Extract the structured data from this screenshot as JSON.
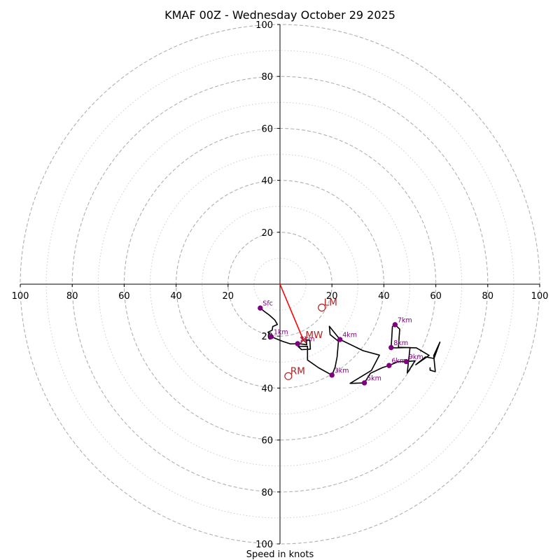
{
  "chart_data": {
    "type": "hodograph",
    "title": "KMAF 00Z - Wednesday October 29 2025",
    "xlabel": "Speed in knots",
    "units": "knots",
    "rings_major": [
      20,
      40,
      60,
      80,
      100
    ],
    "rings_minor": [
      10,
      30,
      50,
      70,
      90
    ],
    "axis_tick_labels": [
      "20",
      "40",
      "60",
      "80",
      "100"
    ],
    "xlim": [
      -100,
      100
    ],
    "ylim": [
      -100,
      100
    ],
    "colors": {
      "trace": "#000000",
      "height_markers": "#800080",
      "motion": "#b22222",
      "shear_vector": "#ff0000",
      "major_ring": "#b0b0b0",
      "minor_ring": "#cccccc"
    },
    "trace": [
      [
        -7.6,
        -9.2
      ],
      [
        -6,
        -10.5
      ],
      [
        -4,
        -12
      ],
      [
        -2,
        -13.8
      ],
      [
        -1,
        -15.5
      ],
      [
        -2.8,
        -16.3
      ],
      [
        -3,
        -17.7
      ],
      [
        -4.6,
        -18.5
      ],
      [
        -3.8,
        -19.5
      ],
      [
        -3.4,
        -20.2
      ],
      [
        -1.5,
        -21
      ],
      [
        1,
        -22
      ],
      [
        4,
        -23
      ],
      [
        6.8,
        -22.9
      ],
      [
        8,
        -23
      ],
      [
        10.3,
        -23.3
      ],
      [
        10.1,
        -21.4
      ],
      [
        11.5,
        -21.6
      ],
      [
        11.7,
        -25
      ],
      [
        8.3,
        -25.2
      ],
      [
        7,
        -24
      ],
      [
        10.6,
        -23.9
      ],
      [
        10.6,
        -29.2
      ],
      [
        14.9,
        -32.2
      ],
      [
        20,
        -35
      ],
      [
        21.2,
        -32
      ],
      [
        22,
        -28
      ],
      [
        22.5,
        -22
      ],
      [
        19.3,
        -19.4
      ],
      [
        19,
        -16.2
      ],
      [
        23.1,
        -21.3
      ],
      [
        32,
        -25.6
      ],
      [
        38.3,
        -27.3
      ],
      [
        35.2,
        -33.2
      ],
      [
        27,
        -38.2
      ],
      [
        32.5,
        -38
      ],
      [
        34.8,
        -34.3
      ],
      [
        39.5,
        -32.1
      ],
      [
        42,
        -31.3
      ],
      [
        45.5,
        -29.8
      ],
      [
        48.6,
        -29.8
      ],
      [
        52,
        -29.5
      ],
      [
        49,
        -34.2
      ],
      [
        50,
        -25
      ],
      [
        50,
        -24.4
      ],
      [
        44.2,
        -24.5
      ],
      [
        42.8,
        -24.4
      ],
      [
        43.3,
        -16.3
      ],
      [
        44.3,
        -15.6
      ],
      [
        46.1,
        -17.3
      ],
      [
        45.6,
        -24.3
      ],
      [
        52.5,
        -24.5
      ],
      [
        57.4,
        -27.4
      ],
      [
        52.3,
        -31
      ],
      [
        56,
        -28
      ],
      [
        59.3,
        -28.6
      ],
      [
        61.6,
        -22.3
      ],
      [
        59.2,
        -27.5
      ],
      [
        59.8,
        -33.7
      ],
      [
        57.8,
        -33.1
      ],
      [
        57.8,
        -32
      ]
    ],
    "height_markers": [
      {
        "label": "Sfc",
        "u": -7.6,
        "v": -9.2
      },
      {
        "label": "1km",
        "u": -3.4,
        "v": -20.2
      },
      {
        "label": "2km",
        "u": 6.8,
        "v": -22.9
      },
      {
        "label": "3km",
        "u": 20,
        "v": -35
      },
      {
        "label": "4km",
        "u": 23.1,
        "v": -21.3
      },
      {
        "label": "5km",
        "u": 32.5,
        "v": -38
      },
      {
        "label": "6km",
        "u": 42,
        "v": -31.3
      },
      {
        "label": "7km",
        "u": 44.3,
        "v": -15.6
      },
      {
        "label": "8km",
        "u": 42.8,
        "v": -24.4
      },
      {
        "label": "9km",
        "u": 48.6,
        "v": -29.8
      }
    ],
    "storm_motion": [
      {
        "label": "LM",
        "u": 16.1,
        "v": -9
      },
      {
        "label": "MW",
        "u": 9,
        "v": -21.5
      },
      {
        "label": "RM",
        "u": 3.2,
        "v": -35.4
      }
    ],
    "shear_vector": {
      "from": [
        0,
        0
      ],
      "to": [
        9,
        -21.5
      ]
    }
  }
}
